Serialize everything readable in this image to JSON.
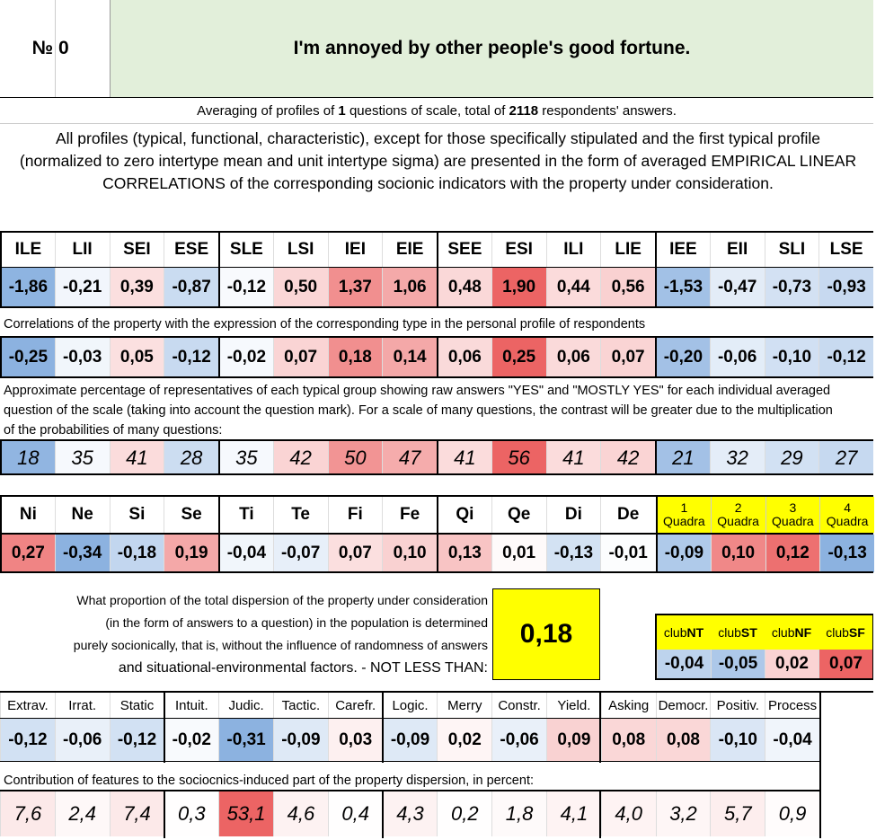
{
  "header": {
    "number_label": "№",
    "number": "0",
    "title": "I'm annoyed by other people's good fortune."
  },
  "summary": {
    "prefix": "Averaging of profiles of",
    "questions": "1",
    "middle": "questions of scale, total of",
    "respondents": "2118",
    "suffix": "respondents' answers."
  },
  "description": "All profiles (typical, functional, characteristic), except for those specifically stipulated and the first typical profile (normalized to zero intertype mean and unit intertype sigma) are presented in the form of averaged EMPIRICAL LINEAR CORRELATIONS of the corresponding socionic indicators with the property under consideration.",
  "types": {
    "labels": [
      "ILE",
      "LII",
      "SEI",
      "ESE",
      "SLE",
      "LSI",
      "IEI",
      "EIE",
      "SEE",
      "ESI",
      "ILI",
      "LIE",
      "IEE",
      "EII",
      "SLI",
      "LSE"
    ],
    "profile": [
      "-1,86",
      "-0,21",
      "0,39",
      "-0,87",
      "-0,12",
      "0,50",
      "1,37",
      "1,06",
      "0,48",
      "1,90",
      "0,44",
      "0,56",
      "-1,53",
      "-0,47",
      "-0,73",
      "-0,93"
    ],
    "correlation_caption": "Correlations of the property with the expression of the corresponding type in the personal profile of respondents",
    "correlations": [
      "-0,25",
      "-0,03",
      "0,05",
      "-0,12",
      "-0,02",
      "0,07",
      "0,18",
      "0,14",
      "0,06",
      "0,25",
      "0,06",
      "0,07",
      "-0,20",
      "-0,06",
      "-0,10",
      "-0,12"
    ],
    "percentage_caption": "Approximate percentage of representatives of each typical group showing raw answers \"YES\" and \"MOSTLY YES\" for each individual averaged question of the scale (taking into account the question mark). For a scale of many questions, the contrast will be greater due to the multiplication of the probabilities of many questions:",
    "percentages": [
      "18",
      "35",
      "41",
      "28",
      "35",
      "42",
      "50",
      "47",
      "41",
      "56",
      "41",
      "42",
      "21",
      "32",
      "29",
      "27"
    ]
  },
  "functions": {
    "labels": [
      "Ni",
      "Ne",
      "Si",
      "Se",
      "Ti",
      "Te",
      "Fi",
      "Fe",
      "Qi",
      "Qe",
      "Di",
      "De"
    ],
    "values": [
      "0,27",
      "-0,34",
      "-0,18",
      "0,19",
      "-0,04",
      "-0,07",
      "0,07",
      "0,10",
      "0,13",
      "0,01",
      "-0,13",
      "-0,01"
    ]
  },
  "quadras": {
    "labels": [
      {
        "number": "1",
        "label": "Quadra"
      },
      {
        "number": "2",
        "label": "Quadra"
      },
      {
        "number": "3",
        "label": "Quadra"
      },
      {
        "number": "4",
        "label": "Quadra"
      }
    ],
    "values": [
      "-0,09",
      "0,10",
      "0,12",
      "-0,13"
    ]
  },
  "dispersion": {
    "lines": [
      "What proportion of the total dispersion of the property under consideration",
      "(in the form of answers to a question) in the population is determined",
      "purely socionically, that is, without the influence of randomness of answers",
      "and situational-environmental factors. - NOT LESS THAN:"
    ],
    "value": "0,18"
  },
  "clubs": {
    "labels": [
      {
        "prefix": "club",
        "name": "NT"
      },
      {
        "prefix": "club",
        "name": "ST"
      },
      {
        "prefix": "club",
        "name": "NF"
      },
      {
        "prefix": "club",
        "name": "SF"
      }
    ],
    "values": [
      "-0,04",
      "-0,05",
      "0,02",
      "0,07"
    ]
  },
  "features": {
    "labels": [
      "Extrav.",
      "Irrat.",
      "Static",
      "Intuit.",
      "Judic.",
      "Tactic.",
      "Carefr.",
      "Logic.",
      "Merry",
      "Constr.",
      "Yield.",
      "Asking",
      "Democr.",
      "Positiv.",
      "Process"
    ],
    "values": [
      "-0,12",
      "-0,06",
      "-0,12",
      "-0,02",
      "-0,31",
      "-0,09",
      "0,03",
      "-0,09",
      "0,02",
      "-0,06",
      "0,09",
      "0,08",
      "0,08",
      "-0,10",
      "-0,04"
    ],
    "contribution_caption": "Contribution of features to the sociocnics-induced part of the property dispersion, in percent:",
    "contributions": [
      "7,6",
      "2,4",
      "7,4",
      "0,3",
      "53,1",
      "4,6",
      "0,4",
      "4,3",
      "0,2",
      "1,8",
      "4,1",
      "4,0",
      "3,2",
      "5,7",
      "0,9"
    ]
  }
}
